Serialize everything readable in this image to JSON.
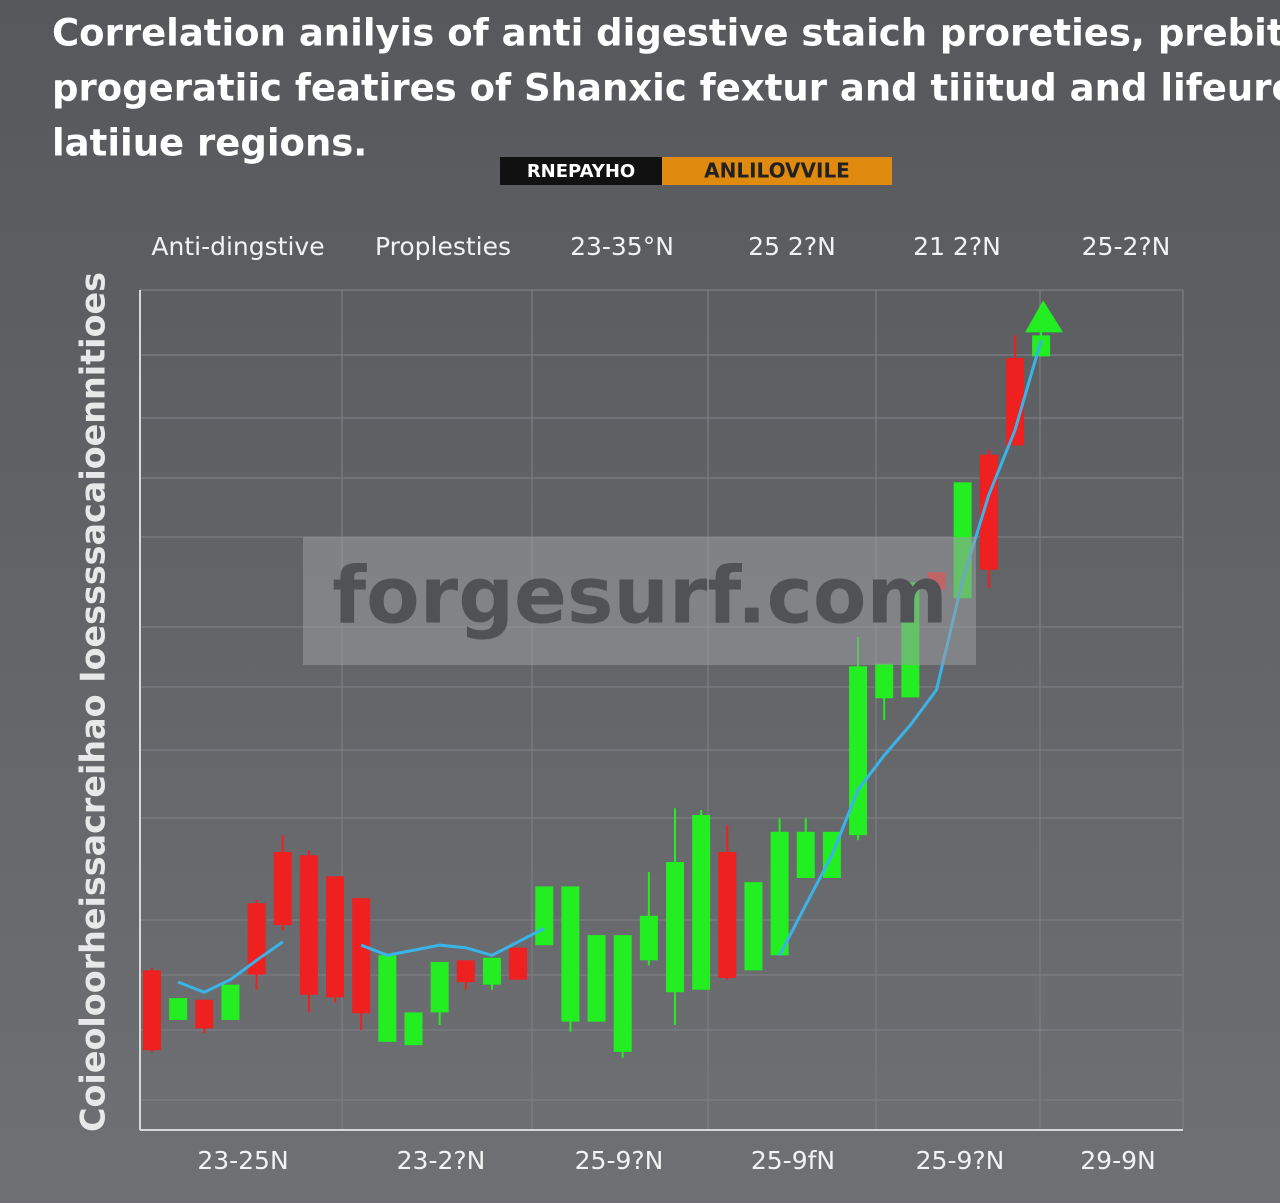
{
  "chart_data": {
    "type": "candlestick",
    "title": [
      "Correlation anilyis of anti digestive staich proreties, prebitic",
      "progeratiic featires of Shanxic fextur and tiiitud and lifeurel",
      "latiiue regions."
    ],
    "badge": [
      "RNEPAYHO",
      "ANLILOVVILE"
    ],
    "y_label": "Coieoloorheissacreihao  Ioessssacaioennitioes",
    "top_labels": [
      "Anti-dingstive",
      "Proplesties",
      "23-35°N",
      "25 2?N",
      "21 2?N",
      "25-2?N"
    ],
    "x_labels": [
      "23-25N",
      "23-2?N",
      "25-9?N",
      "25-9fN",
      "25-9?N",
      "29-9N"
    ],
    "watermark": "forgesurf.com",
    "ylim": [
      0,
      100
    ],
    "up_color": "#22ee22",
    "down_color": "#ee2020",
    "open": [
      19.0,
      13.1,
      15.5,
      13.1,
      27.0,
      33.1,
      32.7,
      30.2,
      27.6,
      10.5,
      10.1,
      14.0,
      20.2,
      17.3,
      21.7,
      22.0,
      12.9,
      12.9,
      9.3,
      20.2,
      16.4,
      16.7,
      33.1,
      19.0,
      20.8,
      30.0,
      30.0,
      35.1,
      51.4,
      51.5,
      66.4,
      63.3,
      80.4,
      91.9,
      92.1
    ],
    "high": [
      19.3,
      15.7,
      15.5,
      17.3,
      27.4,
      35.1,
      33.3,
      30.2,
      27.6,
      20.8,
      14.0,
      20.0,
      20.2,
      20.5,
      21.7,
      29.0,
      29.0,
      23.2,
      23.2,
      30.7,
      38.3,
      38.1,
      36.3,
      29.5,
      37.1,
      37.1,
      35.5,
      58.7,
      55.5,
      65.2,
      66.4,
      77.1,
      81.0,
      94.6,
      95.2
    ],
    "low": [
      9.3,
      13.1,
      11.5,
      13.1,
      16.7,
      23.8,
      14.0,
      15.2,
      11.9,
      10.5,
      10.1,
      12.5,
      16.7,
      16.7,
      17.9,
      22.0,
      11.7,
      12.9,
      8.6,
      19.6,
      12.5,
      16.7,
      17.9,
      19.0,
      20.8,
      30.0,
      30.0,
      34.5,
      48.8,
      51.5,
      64.3,
      63.3,
      64.5,
      81.5,
      92.1
    ],
    "close": [
      9.5,
      15.7,
      12.1,
      17.3,
      18.5,
      24.4,
      16.1,
      15.8,
      13.9,
      20.8,
      14.0,
      20.0,
      17.6,
      20.5,
      17.9,
      29.0,
      29.0,
      23.2,
      23.2,
      25.5,
      31.9,
      37.5,
      18.1,
      29.5,
      35.5,
      35.5,
      35.5,
      55.2,
      55.5,
      65.2,
      64.3,
      77.1,
      66.7,
      81.5,
      94.6
    ],
    "trend": {
      "color": "#3ab4e8",
      "values": [
        null,
        17.6,
        16.4,
        17.9,
        20.2,
        22.4,
        null,
        null,
        22.0,
        20.8,
        21.4,
        22.0,
        21.7,
        20.8,
        22.4,
        24.0,
        null,
        null,
        null,
        null,
        null,
        null,
        null,
        null,
        20.8,
        26.8,
        32.7,
        40.5,
        44.6,
        48.2,
        52.4,
        65.5,
        75.6,
        83.3,
        94.0
      ]
    }
  }
}
